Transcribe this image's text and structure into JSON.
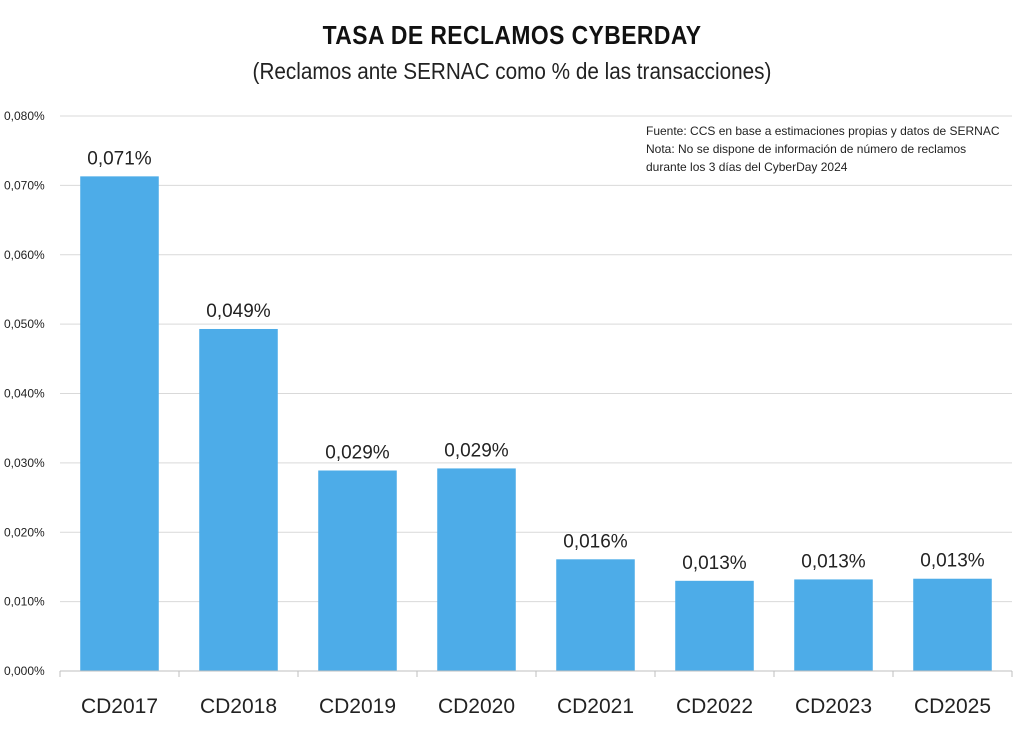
{
  "chart_data": {
    "type": "bar",
    "title": "TASA DE RECLAMOS CYBERDAY",
    "subtitle": "(Reclamos ante SERNAC como % de las transacciones)",
    "categories": [
      "CD2017",
      "CD2018",
      "CD2019",
      "CD2020",
      "CD2021",
      "CD2022",
      "CD2023",
      "CD2025"
    ],
    "values": [
      0.0713,
      0.0493,
      0.0289,
      0.0292,
      0.0161,
      0.013,
      0.0132,
      0.0133
    ],
    "data_labels": [
      "0,071%",
      "0,049%",
      "0,029%",
      "0,029%",
      "0,016%",
      "0,013%",
      "0,013%",
      "0,013%"
    ],
    "ylim": [
      0,
      0.08
    ],
    "yticks": [
      0,
      0.01,
      0.02,
      0.03,
      0.04,
      0.05,
      0.06,
      0.07,
      0.08
    ],
    "ytick_labels": [
      "0,000%",
      "0,010%",
      "0,020%",
      "0,030%",
      "0,040%",
      "0,050%",
      "0,060%",
      "0,070%",
      "0,080%"
    ],
    "xlabel": "",
    "ylabel": "",
    "grid": true,
    "bar_color": "#4DACE8",
    "notes": [
      "Fuente: CCS en base a estimaciones propias y datos de SERNAC",
      "Nota: No se dispone de información de número de reclamos",
      "durante los 3 días del CyberDay 2024"
    ]
  }
}
